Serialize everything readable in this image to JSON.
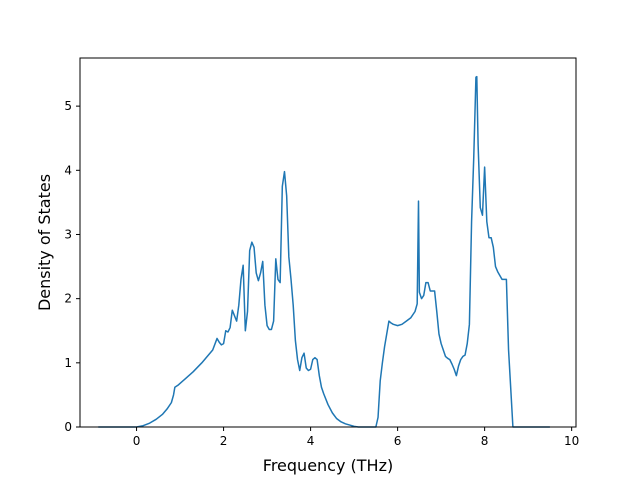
{
  "chart_data": {
    "type": "line",
    "title": "",
    "xlabel": "Frequency (THz)",
    "ylabel": "Density of States",
    "xlim": [
      -1.3,
      10.1
    ],
    "ylim": [
      0,
      5.75
    ],
    "xticks": [
      0,
      2,
      4,
      6,
      8,
      10
    ],
    "yticks": [
      0,
      1,
      2,
      3,
      4,
      5
    ],
    "grid": false,
    "legend": "none",
    "series": [
      {
        "color": "#1f77b4",
        "x": [
          -0.88,
          0.0,
          0.15,
          0.3,
          0.45,
          0.6,
          0.7,
          0.8,
          0.85,
          0.88,
          0.95,
          1.1,
          1.3,
          1.5,
          1.65,
          1.75,
          1.85,
          1.9,
          1.95,
          2.0,
          2.05,
          2.1,
          2.15,
          2.2,
          2.3,
          2.35,
          2.4,
          2.45,
          2.5,
          2.55,
          2.6,
          2.65,
          2.7,
          2.75,
          2.8,
          2.85,
          2.9,
          2.95,
          3.0,
          3.05,
          3.1,
          3.15,
          3.2,
          3.25,
          3.3,
          3.35,
          3.4,
          3.45,
          3.5,
          3.55,
          3.6,
          3.65,
          3.7,
          3.75,
          3.8,
          3.85,
          3.9,
          3.95,
          4.0,
          4.05,
          4.1,
          4.15,
          4.2,
          4.25,
          4.3,
          4.4,
          4.5,
          4.6,
          4.7,
          4.8,
          4.9,
          5.0,
          5.1,
          5.2,
          5.3,
          5.4,
          5.5,
          5.55,
          5.6,
          5.65,
          5.7,
          5.8,
          5.85,
          5.9,
          6.0,
          6.1,
          6.2,
          6.3,
          6.4,
          6.45,
          6.48,
          6.5,
          6.55,
          6.6,
          6.65,
          6.7,
          6.75,
          6.8,
          6.85,
          6.9,
          6.95,
          7.0,
          7.05,
          7.1,
          7.15,
          7.2,
          7.25,
          7.3,
          7.35,
          7.4,
          7.45,
          7.5,
          7.55,
          7.6,
          7.65,
          7.7,
          7.75,
          7.8,
          7.82,
          7.85,
          7.9,
          7.95,
          8.0,
          8.05,
          8.1,
          8.15,
          8.2,
          8.25,
          8.3,
          8.4,
          8.5,
          8.55,
          8.6,
          8.65,
          8.7,
          9.5
        ],
        "y": [
          0.0,
          0.0,
          0.02,
          0.06,
          0.12,
          0.2,
          0.28,
          0.38,
          0.5,
          0.62,
          0.65,
          0.74,
          0.86,
          1.0,
          1.12,
          1.2,
          1.38,
          1.32,
          1.28,
          1.3,
          1.5,
          1.48,
          1.55,
          1.82,
          1.65,
          1.9,
          2.3,
          2.52,
          1.5,
          1.8,
          2.75,
          2.88,
          2.8,
          2.4,
          2.28,
          2.4,
          2.58,
          1.9,
          1.58,
          1.52,
          1.52,
          1.65,
          2.62,
          2.3,
          2.25,
          3.75,
          3.98,
          3.6,
          2.65,
          2.3,
          1.9,
          1.35,
          1.05,
          0.88,
          1.08,
          1.15,
          0.92,
          0.88,
          0.9,
          1.05,
          1.08,
          1.05,
          0.8,
          0.62,
          0.52,
          0.35,
          0.22,
          0.13,
          0.08,
          0.05,
          0.03,
          0.01,
          0.0,
          0.0,
          0.0,
          0.0,
          0.0,
          0.15,
          0.72,
          1.0,
          1.25,
          1.65,
          1.62,
          1.6,
          1.58,
          1.6,
          1.65,
          1.7,
          1.8,
          1.92,
          3.52,
          2.1,
          2.0,
          2.05,
          2.25,
          2.25,
          2.12,
          2.12,
          2.12,
          1.8,
          1.45,
          1.3,
          1.2,
          1.1,
          1.07,
          1.05,
          0.98,
          0.9,
          0.8,
          0.95,
          1.05,
          1.1,
          1.12,
          1.3,
          1.6,
          3.2,
          4.2,
          5.45,
          5.46,
          4.4,
          3.42,
          3.3,
          4.05,
          3.2,
          2.95,
          2.95,
          2.8,
          2.5,
          2.42,
          2.3,
          2.3,
          1.2,
          0.6,
          0.0,
          0.0,
          0.0
        ]
      }
    ]
  }
}
